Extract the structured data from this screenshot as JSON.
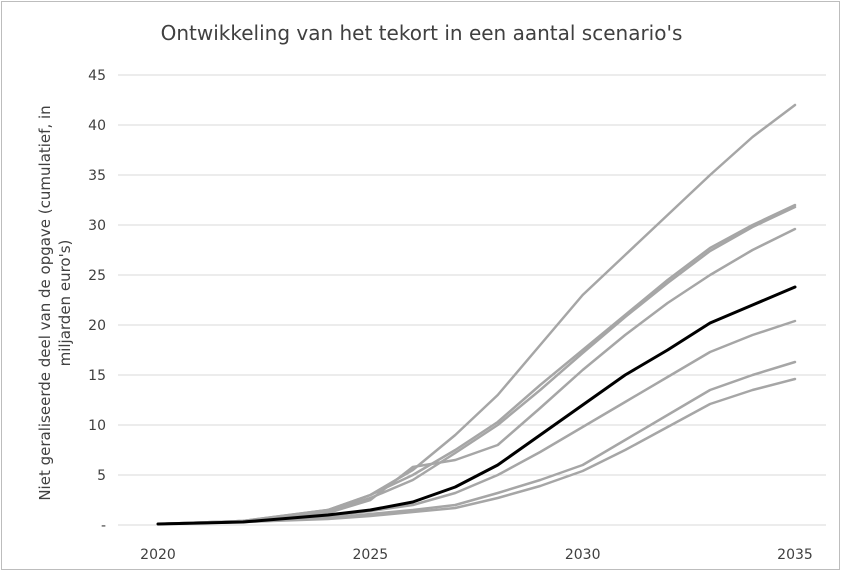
{
  "chart_data": {
    "type": "line",
    "title": "Ontwikkeling van het tekort in een aantal scenario's",
    "xlabel": "",
    "ylabel_lines": [
      "Niet geraliseerde deel van de opgave (cumulatief, in",
      "miljarden euro's)"
    ],
    "x": [
      2020,
      2022,
      2024,
      2025,
      2026,
      2027,
      2028,
      2029,
      2030,
      2031,
      2032,
      2033,
      2034,
      2035
    ],
    "xticks": [
      "2020",
      "2025",
      "2030",
      "2035"
    ],
    "ylim": [
      0,
      45
    ],
    "yticks": [
      "-",
      "5",
      "10",
      "15",
      "20",
      "25",
      "30",
      "35",
      "40",
      "45"
    ],
    "grid": true,
    "legend": "none",
    "colors": {
      "scenario": "#a6a6a6",
      "highlight": "#000000",
      "grid": "#d9d9d9"
    },
    "series": [
      {
        "values": [
          0.1,
          0.4,
          1.5,
          3.0,
          5.5,
          9.0,
          13.0,
          18.0,
          23.0,
          27.0,
          31.0,
          35.0,
          38.8,
          42.0
        ],
        "highlight": false
      },
      {
        "values": [
          0.1,
          0.4,
          1.5,
          3.0,
          5.0,
          7.5,
          10.3,
          14.0,
          17.5,
          21.0,
          24.5,
          27.7,
          30.0,
          32.0
        ],
        "highlight": false
      },
      {
        "values": [
          0.1,
          0.4,
          1.4,
          2.7,
          4.5,
          7.2,
          10.0,
          13.5,
          17.2,
          20.8,
          24.2,
          27.4,
          29.8,
          31.8
        ],
        "highlight": false
      },
      {
        "values": [
          0.1,
          0.4,
          1.2,
          2.5,
          5.8,
          6.5,
          8.0,
          11.7,
          15.5,
          19.0,
          22.2,
          25.0,
          27.5,
          29.6
        ],
        "highlight": false
      },
      {
        "values": [
          0.1,
          0.3,
          1.0,
          1.5,
          2.3,
          3.8,
          6.0,
          9.0,
          12.0,
          15.0,
          17.5,
          20.2,
          22.0,
          23.8
        ],
        "highlight": true
      },
      {
        "values": [
          0.1,
          0.3,
          0.9,
          1.4,
          2.0,
          3.2,
          5.0,
          7.3,
          9.8,
          12.3,
          14.8,
          17.3,
          19.0,
          20.4
        ],
        "highlight": false
      },
      {
        "values": [
          0.1,
          0.3,
          0.7,
          1.1,
          1.5,
          2.0,
          3.2,
          4.5,
          6.0,
          8.5,
          11.0,
          13.5,
          15.0,
          16.3
        ],
        "highlight": false
      },
      {
        "values": [
          0.1,
          0.3,
          0.6,
          0.9,
          1.3,
          1.7,
          2.7,
          3.9,
          5.4,
          7.5,
          9.8,
          12.1,
          13.5,
          14.6
        ],
        "highlight": false
      }
    ]
  }
}
